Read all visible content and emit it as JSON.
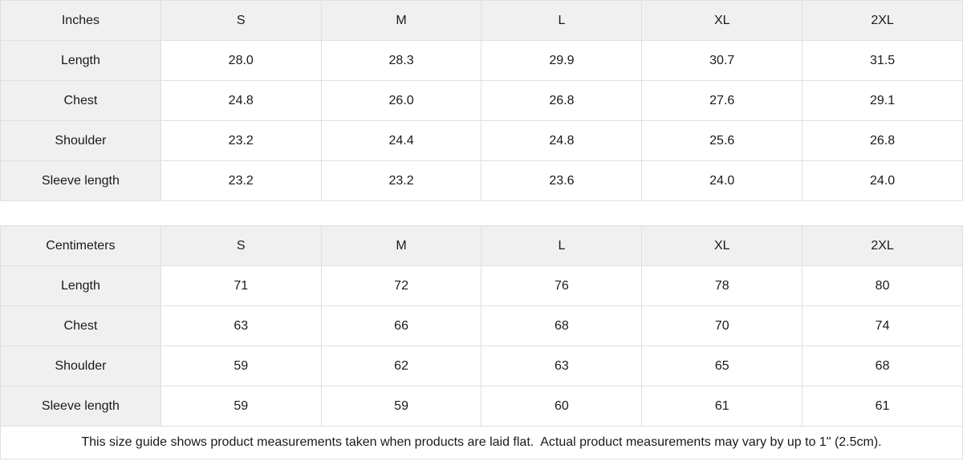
{
  "colors": {
    "header_bg": "#f0f0f0",
    "border": "#e0e0e0",
    "cell_bg": "#ffffff",
    "text": "#1a1a1a"
  },
  "inches_table": {
    "unit_label": "Inches",
    "col_headers": [
      "S",
      "M",
      "L",
      "XL",
      "2XL"
    ],
    "rows": [
      {
        "label": "Length",
        "values": [
          "28.0",
          "28.3",
          "29.9",
          "30.7",
          "31.5"
        ]
      },
      {
        "label": "Chest",
        "values": [
          "24.8",
          "26.0",
          "26.8",
          "27.6",
          "29.1"
        ]
      },
      {
        "label": "Shoulder",
        "values": [
          "23.2",
          "24.4",
          "24.8",
          "25.6",
          "26.8"
        ]
      },
      {
        "label": "Sleeve length",
        "values": [
          "23.2",
          "23.2",
          "23.6",
          "24.0",
          "24.0"
        ]
      }
    ]
  },
  "cm_table": {
    "unit_label": "Centimeters",
    "col_headers": [
      "S",
      "M",
      "L",
      "XL",
      "2XL"
    ],
    "rows": [
      {
        "label": "Length",
        "values": [
          "71",
          "72",
          "76",
          "78",
          "80"
        ]
      },
      {
        "label": "Chest",
        "values": [
          "63",
          "66",
          "68",
          "70",
          "74"
        ]
      },
      {
        "label": "Shoulder",
        "values": [
          "59",
          "62",
          "63",
          "65",
          "68"
        ]
      },
      {
        "label": "Sleeve length",
        "values": [
          "59",
          "59",
          "60",
          "61",
          "61"
        ]
      }
    ]
  },
  "footnote": "This size guide shows product measurements taken when products are laid flat.  Actual product measurements may vary by up to 1\" (2.5cm)."
}
